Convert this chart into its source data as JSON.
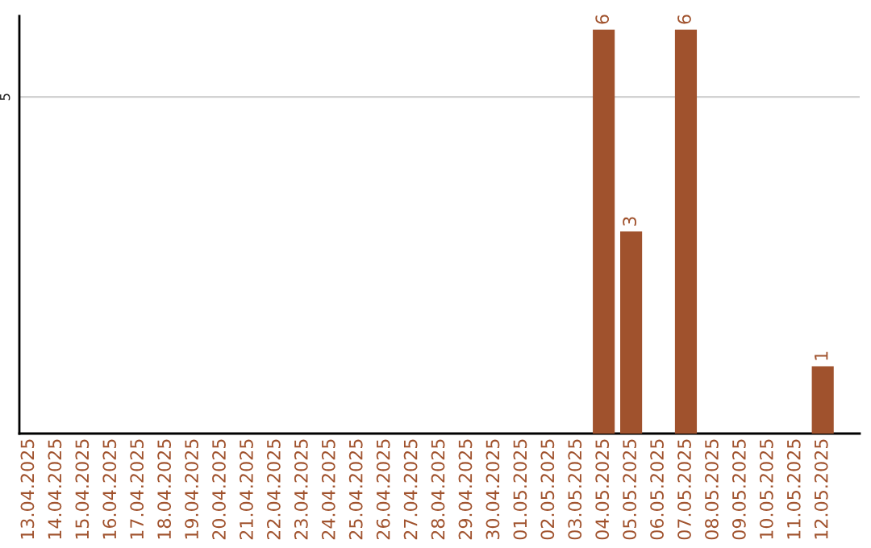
{
  "chart_data": {
    "type": "bar",
    "categories": [
      "13.04.2025",
      "14.04.2025",
      "15.04.2025",
      "16.04.2025",
      "17.04.2025",
      "18.04.2025",
      "19.04.2025",
      "20.04.2025",
      "21.04.2025",
      "22.04.2025",
      "23.04.2025",
      "24.04.2025",
      "25.04.2025",
      "26.04.2025",
      "27.04.2025",
      "28.04.2025",
      "29.04.2025",
      "30.04.2025",
      "01.05.2025",
      "02.05.2025",
      "03.05.2025",
      "04.05.2025",
      "05.05.2025",
      "06.05.2025",
      "07.05.2025",
      "08.05.2025",
      "09.05.2025",
      "10.05.2025",
      "11.05.2025",
      "12.05.2025"
    ],
    "values": [
      null,
      null,
      null,
      null,
      null,
      null,
      null,
      null,
      null,
      null,
      null,
      null,
      null,
      null,
      null,
      null,
      null,
      null,
      null,
      null,
      null,
      6,
      3,
      null,
      6,
      null,
      null,
      null,
      null,
      1
    ],
    "ylim": [
      0,
      6.2
    ],
    "ref_lines": [
      {
        "axis": "y",
        "value": 5,
        "label": "5",
        "color": "#c8c8c8"
      }
    ],
    "value_labels": [
      null,
      null,
      null,
      null,
      null,
      null,
      null,
      null,
      null,
      null,
      null,
      null,
      null,
      null,
      null,
      null,
      null,
      null,
      null,
      null,
      null,
      "6",
      "3",
      null,
      "6",
      null,
      null,
      null,
      null,
      "1"
    ],
    "color": "#a0522d",
    "grid": false
  }
}
